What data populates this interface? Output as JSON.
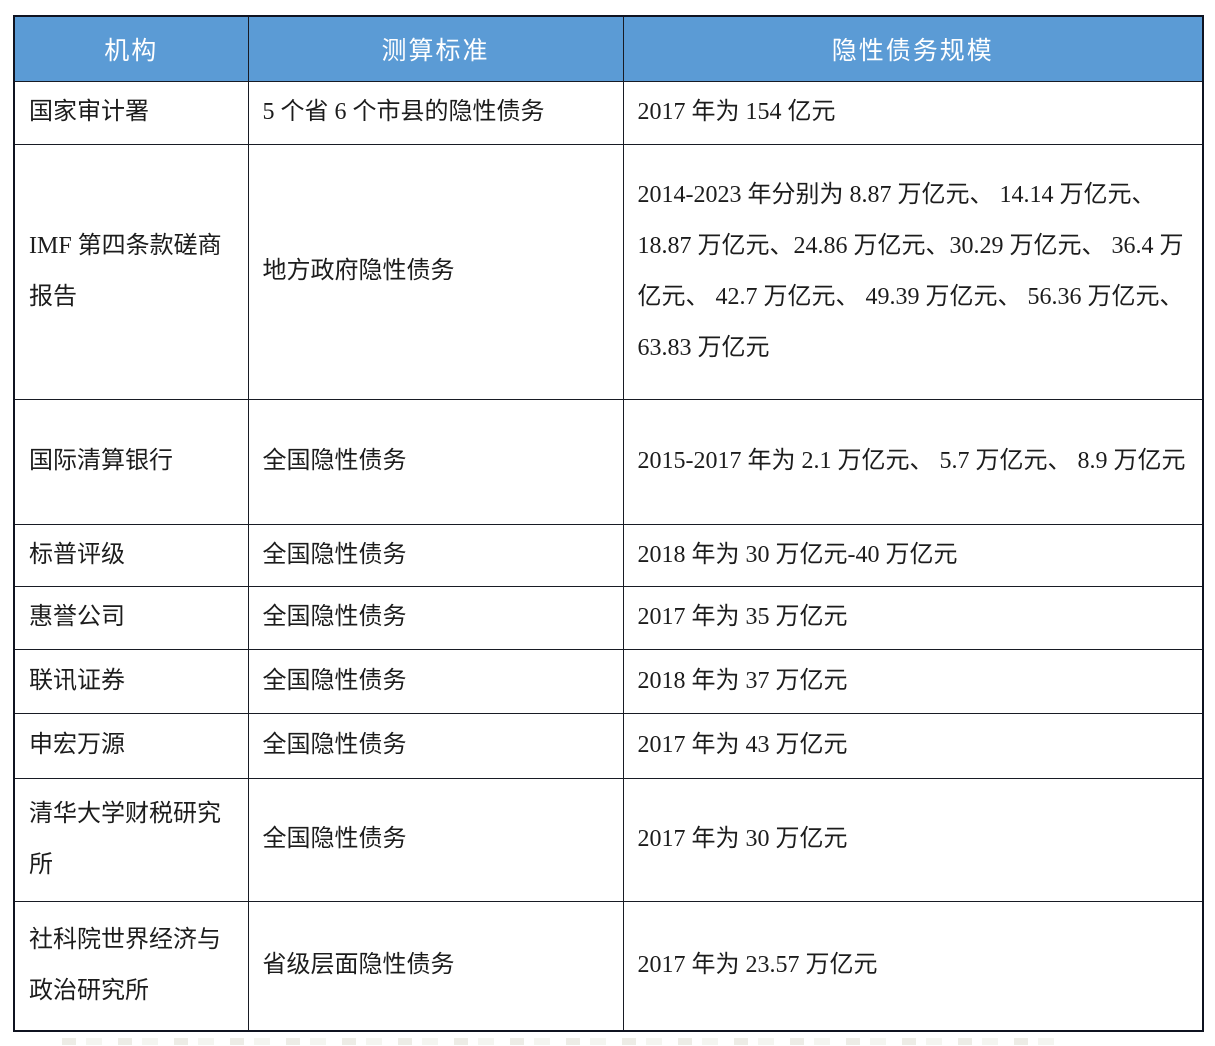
{
  "table": {
    "headers": [
      "机构",
      "测算标准",
      "隐性债务规模"
    ],
    "rows": [
      {
        "institution": "国家审计署",
        "standard": "5 个省 6 个市县的隐性债务",
        "scale": "2017 年为 154 亿元"
      },
      {
        "institution": "IMF 第四条款磋商报告",
        "standard": "地方政府隐性债务",
        "scale": "2014-2023 年分别为 8.87 万亿元、 14.14 万亿元、18.87 万亿元、24.86 万亿元、30.29 万亿元、 36.4 万亿元、 42.7 万亿元、 49.39 万亿元、 56.36 万亿元、 63.83 万亿元"
      },
      {
        "institution": "国际清算银行",
        "standard": "全国隐性债务",
        "scale": "2015-2017 年为 2.1 万亿元、 5.7 万亿元、 8.9 万亿元"
      },
      {
        "institution": "标普评级",
        "standard": "全国隐性债务",
        "scale": "2018 年为 30 万亿元-40 万亿元"
      },
      {
        "institution": "惠誉公司",
        "standard": "全国隐性债务",
        "scale": "2017 年为 35 万亿元"
      },
      {
        "institution": "联讯证券",
        "standard": "全国隐性债务",
        "scale": "2018 年为 37 万亿元"
      },
      {
        "institution": "申宏万源",
        "standard": "全国隐性债务",
        "scale": "2017 年为 43 万亿元"
      },
      {
        "institution": "清华大学财税研究所",
        "standard": "全国隐性债务",
        "scale": "2017 年为 30 万亿元"
      },
      {
        "institution": "社科院世界经济与政治研究所",
        "standard": "省级层面隐性债务",
        "scale": "2017 年为 23.57 万亿元"
      }
    ]
  },
  "colors": {
    "header_bg": "#5B9BD5",
    "header_text": "#ffffff",
    "body_text": "#1c1c1c",
    "border": "#181b24"
  }
}
